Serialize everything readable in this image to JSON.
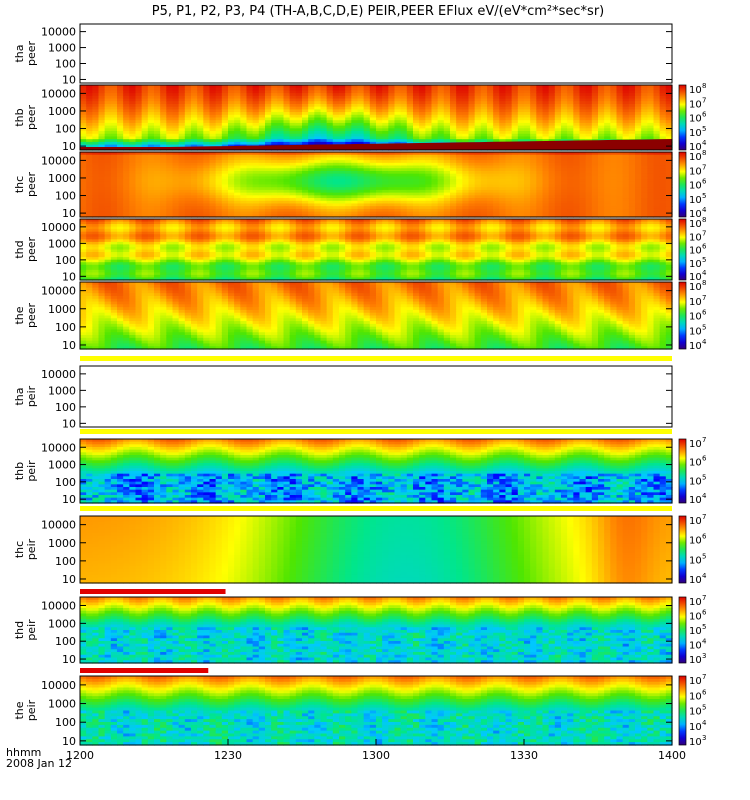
{
  "title": "P5, P1, P2, P3, P4 (TH-A,B,C,D,E) PEIR,PEER EFlux eV/(eV*cm²*sec*sr)",
  "time_axis": {
    "label": "hhmm",
    "date": "2008 Jan 12",
    "ticks": [
      "1200",
      "1230",
      "1300",
      "1330",
      "1400"
    ],
    "tick_minutes": [
      0,
      30,
      60,
      90,
      120
    ],
    "range_minutes": [
      0,
      120
    ]
  },
  "chart_data": [
    {
      "type": "heatmap",
      "probe": "tha",
      "species": "peer",
      "ylabel": [
        "tha",
        "peer"
      ],
      "yscale": "log",
      "y_ticks": [
        "10",
        "100",
        "1000",
        "10000"
      ],
      "y_tick_values": [
        10,
        100,
        1000,
        10000
      ],
      "ylim": [
        6,
        30000
      ],
      "colorbar": null,
      "pattern": "empty",
      "yellow_strip": false,
      "flag_bar": null
    },
    {
      "type": "heatmap",
      "probe": "thb",
      "species": "peer",
      "ylabel": [
        "thb",
        "peer"
      ],
      "yscale": "log",
      "y_ticks": [
        "10",
        "100",
        "1000",
        "10000"
      ],
      "y_tick_values": [
        10,
        100,
        1000,
        10000
      ],
      "ylim": [
        6,
        30000
      ],
      "colorbar": {
        "labels": [
          "10",
          "10",
          "10",
          "10",
          "10"
        ],
        "exponents": [
          "8",
          "7",
          "6",
          "5",
          "4"
        ]
      },
      "pattern": "thb_peer",
      "yellow_strip": false,
      "flag_bar": null
    },
    {
      "type": "heatmap",
      "probe": "thc",
      "species": "peer",
      "ylabel": [
        "thc",
        "peer"
      ],
      "yscale": "log",
      "y_ticks": [
        "10",
        "100",
        "1000",
        "10000"
      ],
      "y_tick_values": [
        10,
        100,
        1000,
        10000
      ],
      "ylim": [
        6,
        30000
      ],
      "colorbar": {
        "labels": [
          "10",
          "10",
          "10",
          "10",
          "10"
        ],
        "exponents": [
          "8",
          "7",
          "6",
          "5",
          "4"
        ]
      },
      "pattern": "thc_peer",
      "yellow_strip": false,
      "flag_bar": null
    },
    {
      "type": "heatmap",
      "probe": "thd",
      "species": "peer",
      "ylabel": [
        "thd",
        "peer"
      ],
      "yscale": "log",
      "y_ticks": [
        "10",
        "100",
        "1000",
        "10000"
      ],
      "y_tick_values": [
        10,
        100,
        1000,
        10000
      ],
      "ylim": [
        6,
        30000
      ],
      "colorbar": {
        "labels": [
          "10",
          "10",
          "10",
          "10",
          "10"
        ],
        "exponents": [
          "8",
          "7",
          "6",
          "5",
          "4"
        ]
      },
      "pattern": "thd_peer",
      "yellow_strip": false,
      "flag_bar": null
    },
    {
      "type": "heatmap",
      "probe": "the",
      "species": "peer",
      "ylabel": [
        "the",
        "peer"
      ],
      "yscale": "log",
      "y_ticks": [
        "10",
        "100",
        "1000",
        "10000"
      ],
      "y_tick_values": [
        10,
        100,
        1000,
        10000
      ],
      "ylim": [
        6,
        30000
      ],
      "colorbar": {
        "labels": [
          "10",
          "10",
          "10",
          "10",
          "10"
        ],
        "exponents": [
          "8",
          "7",
          "6",
          "5",
          "4"
        ]
      },
      "pattern": "the_peer",
      "yellow_strip": false,
      "flag_bar": null
    },
    {
      "type": "heatmap",
      "probe": "tha",
      "species": "peir",
      "ylabel": [
        "tha",
        "peir"
      ],
      "yscale": "log",
      "y_ticks": [
        "10",
        "100",
        "1000",
        "10000"
      ],
      "y_tick_values": [
        10,
        100,
        1000,
        10000
      ],
      "ylim": [
        6,
        30000
      ],
      "colorbar": null,
      "pattern": "empty",
      "yellow_strip": true,
      "flag_bar": null
    },
    {
      "type": "heatmap",
      "probe": "thb",
      "species": "peir",
      "ylabel": [
        "thb",
        "peir"
      ],
      "yscale": "log",
      "y_ticks": [
        "10",
        "100",
        "1000",
        "10000"
      ],
      "y_tick_values": [
        10,
        100,
        1000,
        10000
      ],
      "ylim": [
        6,
        30000
      ],
      "colorbar": {
        "labels": [
          "10",
          "10",
          "10",
          "10"
        ],
        "exponents": [
          "7",
          "6",
          "5",
          "4"
        ]
      },
      "pattern": "thb_peir",
      "yellow_strip": true,
      "flag_bar": null
    },
    {
      "type": "heatmap",
      "probe": "thc",
      "species": "peir",
      "ylabel": [
        "thc",
        "peir"
      ],
      "yscale": "log",
      "y_ticks": [
        "10",
        "100",
        "1000",
        "10000"
      ],
      "y_tick_values": [
        10,
        100,
        1000,
        10000
      ],
      "ylim": [
        6,
        30000
      ],
      "colorbar": {
        "labels": [
          "10",
          "10",
          "10",
          "10"
        ],
        "exponents": [
          "7",
          "6",
          "5",
          "4"
        ]
      },
      "pattern": "thc_peir",
      "yellow_strip": true,
      "flag_bar": null
    },
    {
      "type": "heatmap",
      "probe": "thd",
      "species": "peir",
      "ylabel": [
        "thd",
        "peir"
      ],
      "yscale": "log",
      "y_ticks": [
        "10",
        "100",
        "1000",
        "10000"
      ],
      "y_tick_values": [
        10,
        100,
        1000,
        10000
      ],
      "ylim": [
        6,
        30000
      ],
      "colorbar": {
        "labels": [
          "10",
          "10",
          "10",
          "10",
          "10"
        ],
        "exponents": [
          "7",
          "6",
          "5",
          "4",
          "3"
        ]
      },
      "pattern": "thd_peir",
      "yellow_strip": false,
      "flag_bar": {
        "end_minute": 29.5,
        "color": "#e00000"
      }
    },
    {
      "type": "heatmap",
      "probe": "the",
      "species": "peir",
      "ylabel": [
        "the",
        "peir"
      ],
      "yscale": "log",
      "y_ticks": [
        "10",
        "100",
        "1000",
        "10000"
      ],
      "y_tick_values": [
        10,
        100,
        1000,
        10000
      ],
      "ylim": [
        6,
        30000
      ],
      "colorbar": {
        "labels": [
          "10",
          "10",
          "10",
          "10",
          "10"
        ],
        "exponents": [
          "7",
          "6",
          "5",
          "4",
          "3"
        ]
      },
      "pattern": "the_peir",
      "yellow_strip": false,
      "flag_bar": {
        "end_minute": 26,
        "color": "#e00000"
      }
    }
  ],
  "colors": {
    "yellow_strip": "#ffff00",
    "flag_bar": "#e00000",
    "frame": "#000000"
  }
}
